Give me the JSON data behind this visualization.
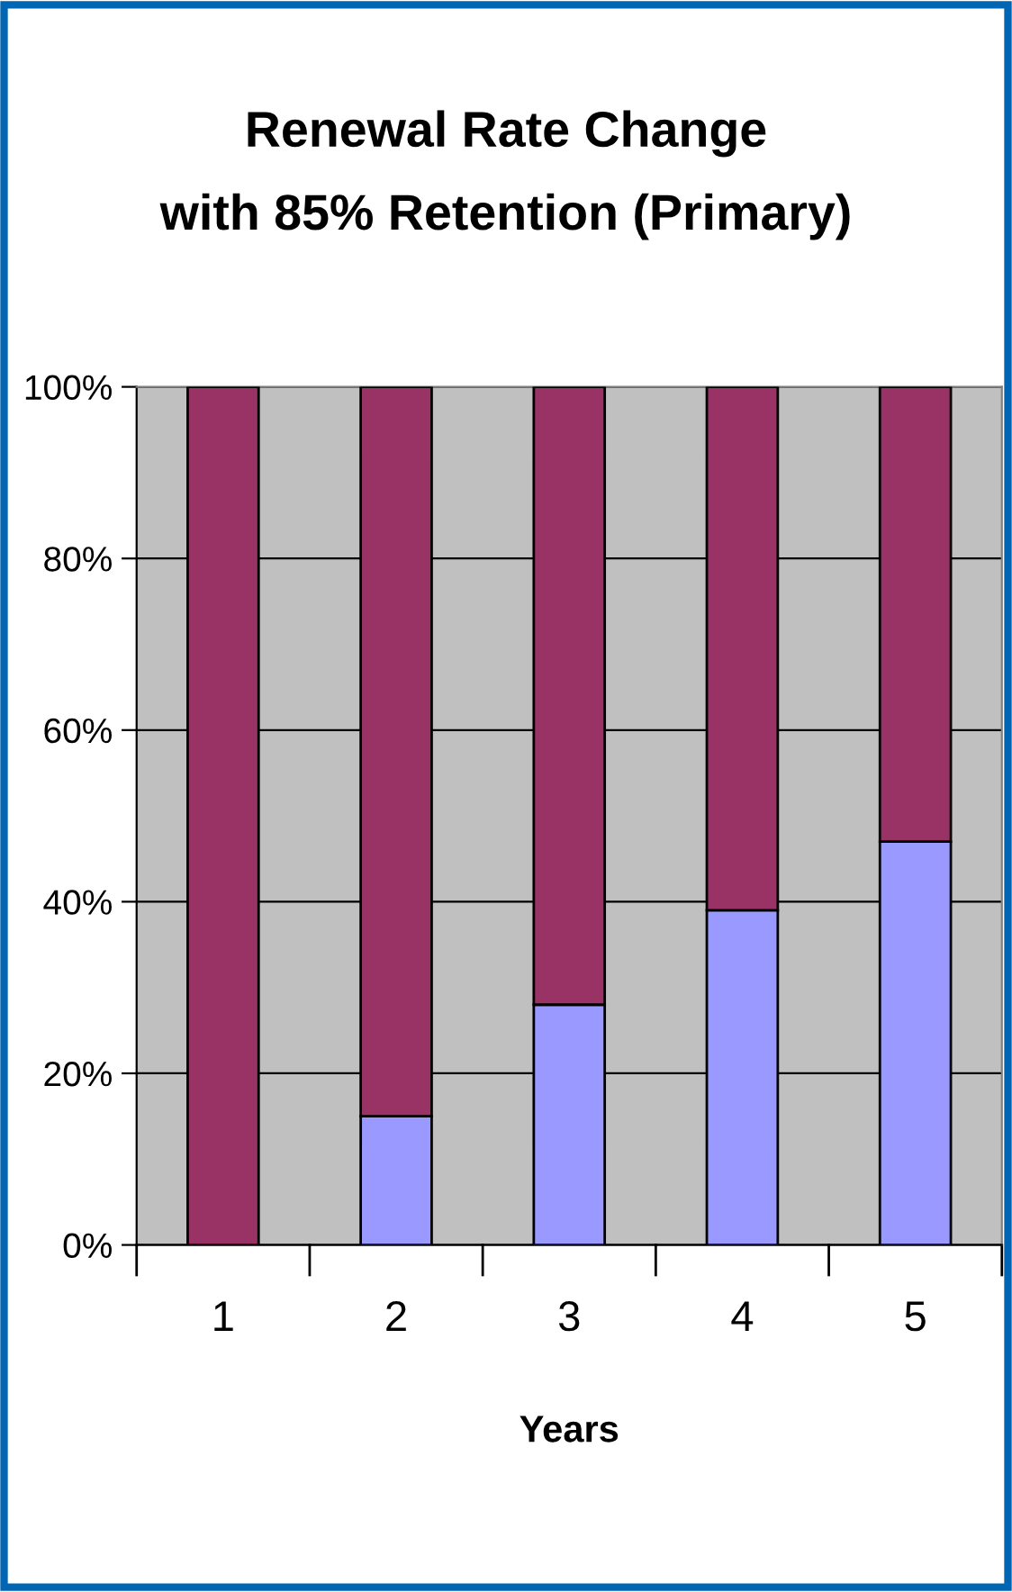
{
  "chart_data": {
    "type": "bar",
    "title": "Renewal Rate Change\nwith 85% Retention (Primary)",
    "xlabel": "Years",
    "categories": [
      "1",
      "2",
      "3",
      "4",
      "5"
    ],
    "stacked": true,
    "series": [
      {
        "color": "#9999ff",
        "values": [
          0,
          15,
          28,
          39,
          47
        ]
      },
      {
        "color": "#993366",
        "values": [
          100,
          85,
          72,
          61,
          53
        ]
      }
    ],
    "ylim": [
      0,
      100
    ],
    "yticks": [
      {
        "value": 0,
        "label": "0%"
      },
      {
        "value": 20,
        "label": "20%"
      },
      {
        "value": 40,
        "label": "40%"
      },
      {
        "value": 60,
        "label": "60%"
      },
      {
        "value": 80,
        "label": "80%"
      },
      {
        "value": 100,
        "label": "100%"
      }
    ],
    "grid": "y"
  }
}
